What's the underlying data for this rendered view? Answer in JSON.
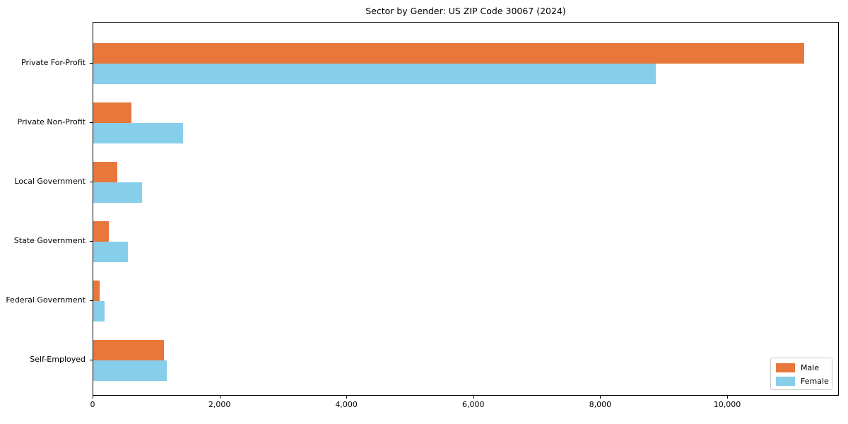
{
  "chart_data": {
    "type": "bar",
    "orientation": "horizontal",
    "title": "Sector by Gender: US ZIP Code 30067 (2024)",
    "categories": [
      "Private For-Profit",
      "Private Non-Profit",
      "Local Government",
      "State Government",
      "Federal Government",
      "Self-Employed"
    ],
    "series": [
      {
        "name": "Male",
        "color": "#E8773B",
        "values": [
          11200,
          600,
          380,
          250,
          100,
          1110
        ]
      },
      {
        "name": "Female",
        "color": "#87CEEB",
        "values": [
          8860,
          1410,
          770,
          540,
          175,
          1160
        ]
      }
    ],
    "xlim": [
      0,
      11760
    ],
    "x_ticks": [
      0,
      2000,
      4000,
      6000,
      8000,
      10000
    ],
    "x_tick_labels": [
      "0",
      "2,000",
      "4,000",
      "6,000",
      "8,000",
      "10,000"
    ],
    "xlabel": "",
    "ylabel": "",
    "grid": false,
    "legend_position": "lower right"
  }
}
